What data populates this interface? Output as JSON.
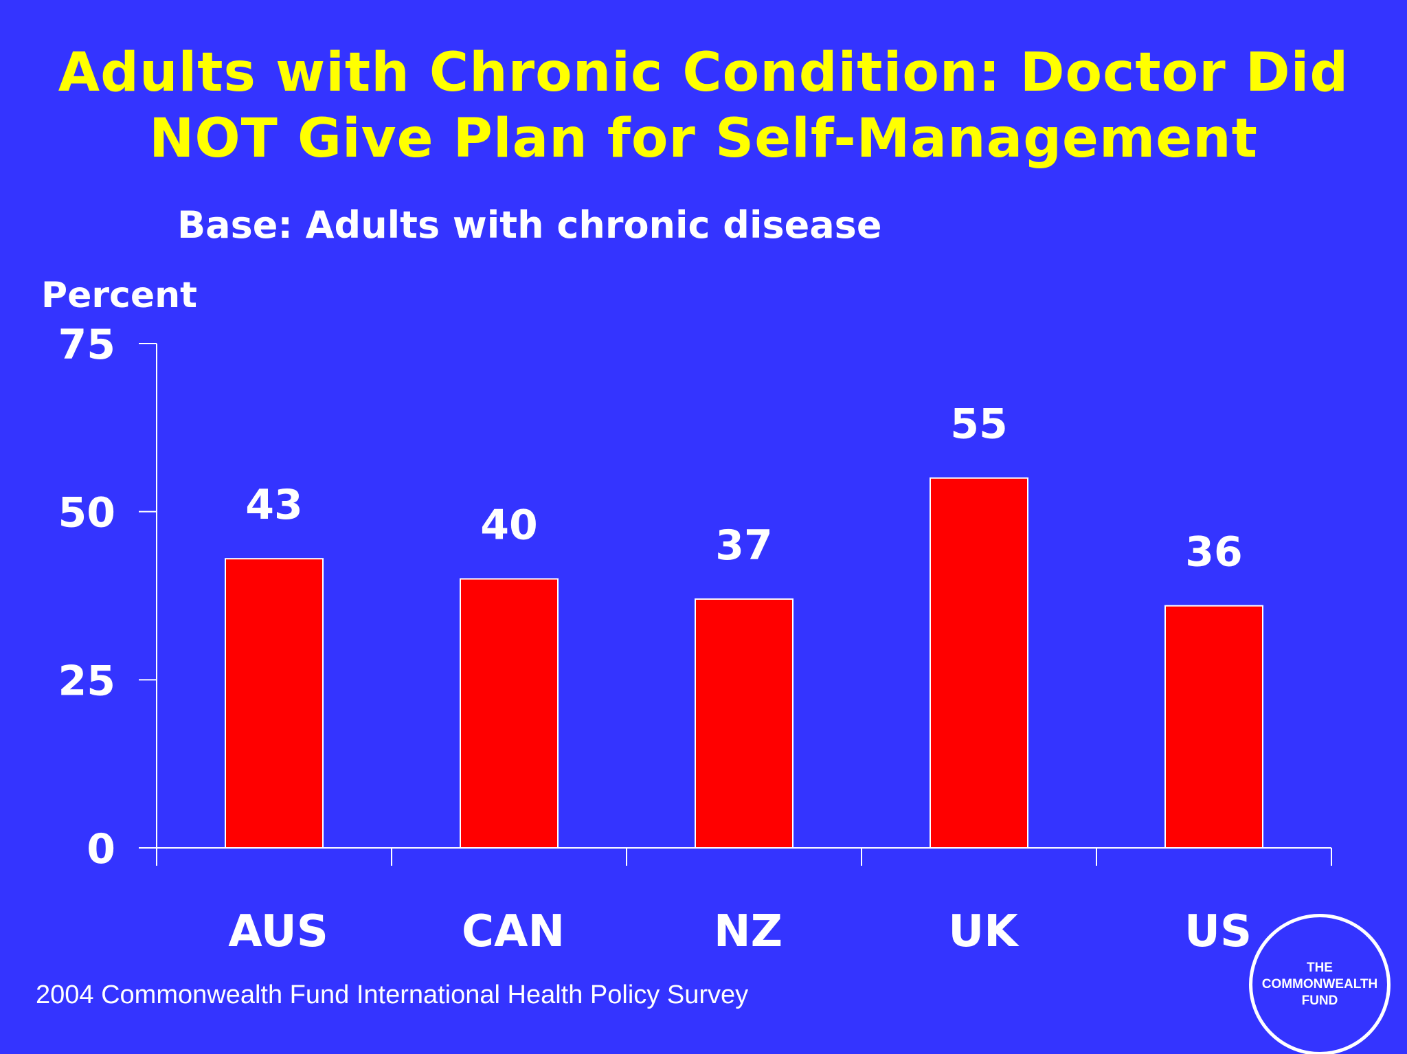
{
  "slide": {
    "title": "Adults with Chronic Condition: Doctor Did NOT Give Plan for Self-Management",
    "subtitle": "Base: Adults with chronic disease",
    "footnote": "2004 Commonwealth Fund International Health Policy Survey",
    "logo_text": "THE\nCOMMONWEALTH\nFUND",
    "background_color": "#3434ff",
    "title_color": "#ffff00",
    "bar_color": "#ff0000"
  },
  "chart_data": {
    "type": "bar",
    "ylabel": "Percent",
    "ylim": [
      0,
      75
    ],
    "yticks": [
      0,
      25,
      50,
      75
    ],
    "categories": [
      "AUS",
      "CAN",
      "NZ",
      "UK",
      "US"
    ],
    "values": [
      43,
      40,
      37,
      55,
      36
    ],
    "data_labels": [
      "43",
      "40",
      "37",
      "55",
      "36"
    ],
    "grid": false,
    "legend": "none"
  }
}
